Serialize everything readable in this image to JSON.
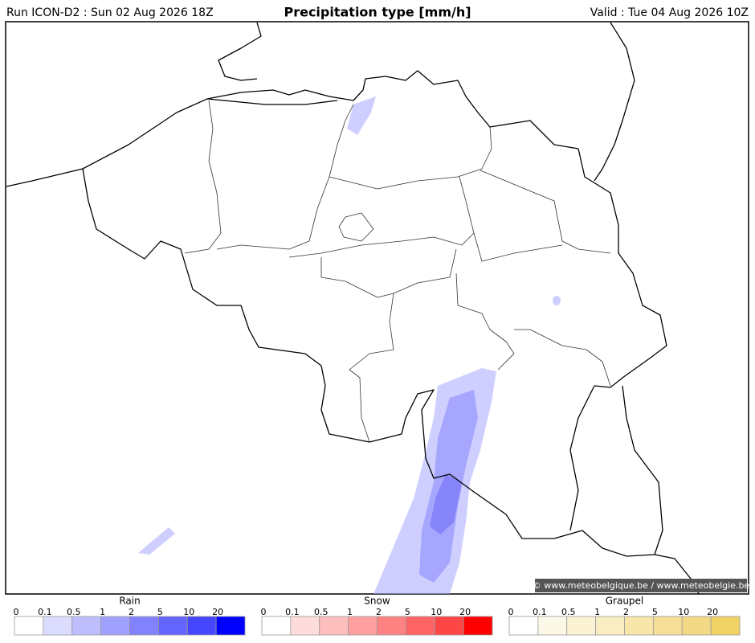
{
  "header": {
    "run": "Run ICON-D2 : Sun 02 Aug 2026 18Z",
    "title": "Precipitation type [mm/h]",
    "valid": "Valid : Tue 04 Aug 2026 10Z"
  },
  "credit": "© www.meteobelgique.be / www.meteobelgie.be",
  "legends": [
    {
      "name": "Rain",
      "ticks": [
        0,
        0.1,
        0.5,
        1,
        2,
        5,
        10,
        20
      ],
      "colors": [
        "#ffffff",
        "#dcdcff",
        "#bebeff",
        "#a0a0ff",
        "#8282ff",
        "#6464ff",
        "#4646ff",
        "#0000ff"
      ]
    },
    {
      "name": "Snow",
      "ticks": [
        0,
        0.1,
        0.5,
        1,
        2,
        5,
        10,
        20
      ],
      "colors": [
        "#ffffff",
        "#ffdcdc",
        "#ffbebe",
        "#ffa0a0",
        "#ff8282",
        "#ff6464",
        "#ff4646",
        "#ff0000"
      ]
    },
    {
      "name": "Graupel",
      "ticks": [
        0,
        0.1,
        0.5,
        1,
        2,
        5,
        10,
        20
      ],
      "colors": [
        "#ffffff",
        "#fcf8e8",
        "#fbf2d4",
        "#f9edc2",
        "#f7e5aa",
        "#f5df98",
        "#f3d986",
        "#f1d264"
      ]
    }
  ]
}
